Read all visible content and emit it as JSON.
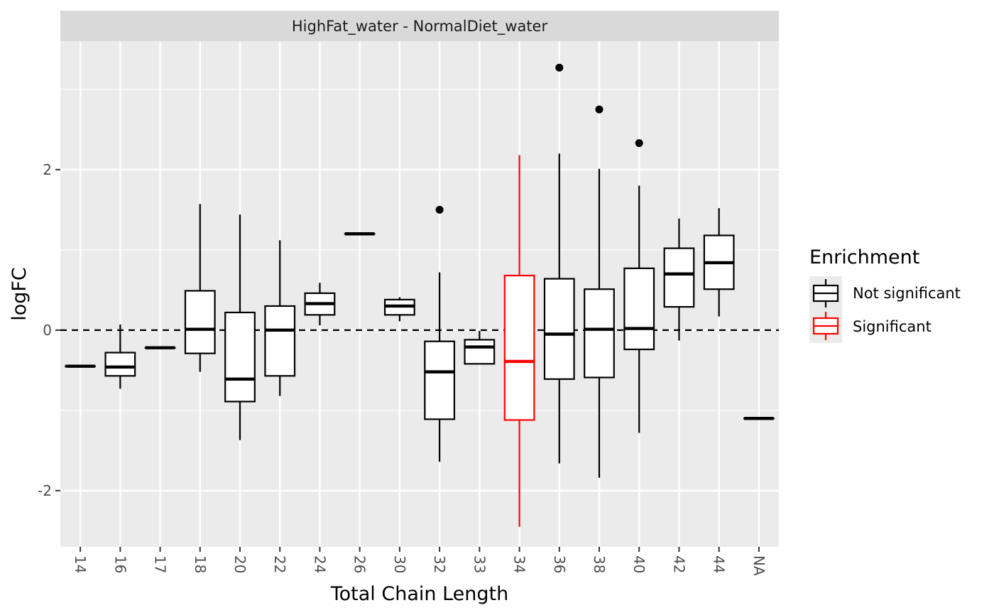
{
  "chart_data": {
    "type": "boxplot",
    "facet_title": "HighFat_water - NormalDiet_water",
    "xlabel": "Total Chain Length",
    "ylabel": "logFC",
    "ylim": [
      -2.7,
      3.6
    ],
    "y_ticks": [
      -2,
      0,
      2
    ],
    "reference_line": {
      "y": 0,
      "style": "dashed"
    },
    "grid": true,
    "legend": {
      "title": "Enrichment",
      "position": "right",
      "entries": [
        {
          "label": "Not significant",
          "color": "#000000"
        },
        {
          "label": "Significant",
          "color": "#ff0000"
        }
      ]
    },
    "categories": [
      "14",
      "16",
      "17",
      "18",
      "20",
      "22",
      "24",
      "26",
      "30",
      "32",
      "33",
      "34",
      "36",
      "38",
      "40",
      "42",
      "44",
      "NA"
    ],
    "boxes": [
      {
        "category": "14",
        "min": -0.45,
        "q1": -0.45,
        "median": -0.45,
        "q3": -0.45,
        "max": -0.45,
        "outliers": [],
        "group": "Not significant"
      },
      {
        "category": "16",
        "min": -0.73,
        "q1": -0.57,
        "median": -0.46,
        "q3": -0.28,
        "max": 0.07,
        "outliers": [],
        "group": "Not significant"
      },
      {
        "category": "17",
        "min": -0.22,
        "q1": -0.22,
        "median": -0.22,
        "q3": -0.22,
        "max": -0.22,
        "outliers": [],
        "group": "Not significant"
      },
      {
        "category": "18",
        "min": -0.52,
        "q1": -0.29,
        "median": 0.01,
        "q3": 0.49,
        "max": 1.57,
        "outliers": [],
        "group": "Not significant"
      },
      {
        "category": "20",
        "min": -1.37,
        "q1": -0.89,
        "median": -0.61,
        "q3": 0.22,
        "max": 1.44,
        "outliers": [],
        "group": "Not significant"
      },
      {
        "category": "22",
        "min": -0.82,
        "q1": -0.57,
        "median": 0.0,
        "q3": 0.3,
        "max": 1.12,
        "outliers": [],
        "group": "Not significant"
      },
      {
        "category": "24",
        "min": 0.06,
        "q1": 0.19,
        "median": 0.33,
        "q3": 0.46,
        "max": 0.59,
        "outliers": [],
        "group": "Not significant"
      },
      {
        "category": "26",
        "min": 1.2,
        "q1": 1.2,
        "median": 1.2,
        "q3": 1.2,
        "max": 1.2,
        "outliers": [],
        "group": "Not significant"
      },
      {
        "category": "30",
        "min": 0.11,
        "q1": 0.19,
        "median": 0.3,
        "q3": 0.38,
        "max": 0.41,
        "outliers": [],
        "group": "Not significant"
      },
      {
        "category": "32",
        "min": -1.64,
        "q1": -1.11,
        "median": -0.52,
        "q3": -0.14,
        "max": 0.72,
        "outliers": [
          1.5
        ],
        "group": "Not significant"
      },
      {
        "category": "33",
        "min": -0.42,
        "q1": -0.42,
        "median": -0.21,
        "q3": -0.12,
        "max": -0.01,
        "outliers": [],
        "group": "Not significant"
      },
      {
        "category": "34",
        "min": -2.45,
        "q1": -1.12,
        "median": -0.39,
        "q3": 0.68,
        "max": 2.18,
        "outliers": [],
        "group": "Significant"
      },
      {
        "category": "36",
        "min": -1.66,
        "q1": -0.61,
        "median": -0.05,
        "q3": 0.64,
        "max": 2.2,
        "outliers": [
          3.27
        ],
        "group": "Not significant"
      },
      {
        "category": "38",
        "min": -1.84,
        "q1": -0.59,
        "median": 0.01,
        "q3": 0.51,
        "max": 2.01,
        "outliers": [
          2.75
        ],
        "group": "Not significant"
      },
      {
        "category": "40",
        "min": -1.28,
        "q1": -0.24,
        "median": 0.02,
        "q3": 0.77,
        "max": 1.8,
        "outliers": [
          2.33
        ],
        "group": "Not significant"
      },
      {
        "category": "42",
        "min": -0.13,
        "q1": 0.29,
        "median": 0.7,
        "q3": 1.02,
        "max": 1.39,
        "outliers": [],
        "group": "Not significant"
      },
      {
        "category": "44",
        "min": 0.17,
        "q1": 0.51,
        "median": 0.84,
        "q3": 1.18,
        "max": 1.52,
        "outliers": [],
        "group": "Not significant"
      },
      {
        "category": "NA",
        "min": -1.1,
        "q1": -1.1,
        "median": -1.1,
        "q3": -1.1,
        "max": -1.1,
        "outliers": [],
        "group": "Not significant"
      }
    ]
  }
}
